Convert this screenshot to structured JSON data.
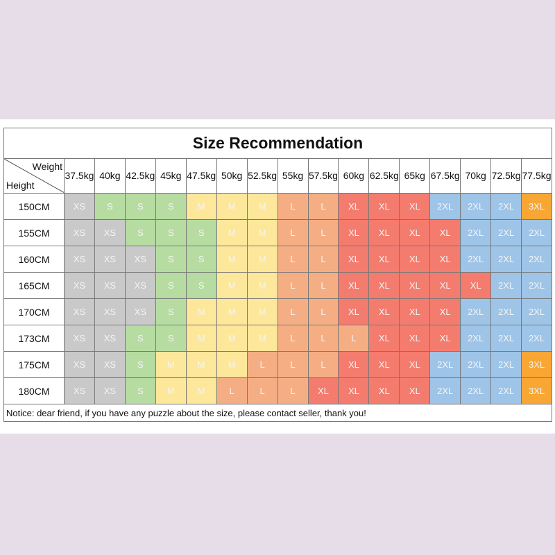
{
  "title": "Size Recommendation",
  "corner": {
    "column_label": "Weight",
    "row_label": "Height"
  },
  "weights": [
    "37.5kg",
    "40kg",
    "42.5kg",
    "45kg",
    "47.5kg",
    "50kg",
    "52.5kg",
    "55kg",
    "57.5kg",
    "60kg",
    "62.5kg",
    "65kg",
    "67.5kg",
    "70kg",
    "72.5kg",
    "77.5kg"
  ],
  "rows": [
    {
      "height": "150CM",
      "sizes": [
        "XS",
        "S",
        "S",
        "S",
        "M",
        "M",
        "M",
        "L",
        "L",
        "XL",
        "XL",
        "XL",
        "2XL",
        "2XL",
        "2XL",
        "3XL"
      ]
    },
    {
      "height": "155CM",
      "sizes": [
        "XS",
        "XS",
        "S",
        "S",
        "S",
        "M",
        "M",
        "L",
        "L",
        "XL",
        "XL",
        "XL",
        "XL",
        "2XL",
        "2XL",
        "2XL"
      ]
    },
    {
      "height": "160CM",
      "sizes": [
        "XS",
        "XS",
        "XS",
        "S",
        "S",
        "M",
        "M",
        "L",
        "L",
        "XL",
        "XL",
        "XL",
        "XL",
        "2XL",
        "2XL",
        "2XL"
      ]
    },
    {
      "height": "165CM",
      "sizes": [
        "XS",
        "XS",
        "XS",
        "S",
        "S",
        "M",
        "M",
        "L",
        "L",
        "XL",
        "XL",
        "XL",
        "XL",
        "XL",
        "2XL",
        "2XL"
      ]
    },
    {
      "height": "170CM",
      "sizes": [
        "XS",
        "XS",
        "XS",
        "S",
        "M",
        "M",
        "M",
        "L",
        "L",
        "XL",
        "XL",
        "XL",
        "XL",
        "2XL",
        "2XL",
        "2XL"
      ]
    },
    {
      "height": "173CM",
      "sizes": [
        "XS",
        "XS",
        "S",
        "S",
        "M",
        "M",
        "M",
        "L",
        "L",
        "L",
        "XL",
        "XL",
        "XL",
        "2XL",
        "2XL",
        "2XL"
      ]
    },
    {
      "height": "175CM",
      "sizes": [
        "XS",
        "XS",
        "S",
        "M",
        "M",
        "M",
        "L",
        "L",
        "L",
        "XL",
        "XL",
        "XL",
        "2XL",
        "2XL",
        "2XL",
        "3XL"
      ]
    },
    {
      "height": "180CM",
      "sizes": [
        "XS",
        "XS",
        "S",
        "M",
        "M",
        "L",
        "L",
        "L",
        "XL",
        "XL",
        "XL",
        "XL",
        "2XL",
        "2XL",
        "2XL",
        "3XL"
      ]
    }
  ],
  "palette": [
    {
      "size": "XS",
      "color": "#c9c9c9"
    },
    {
      "size": "S",
      "color": "#b6dca2"
    },
    {
      "size": "M",
      "color": "#fde79b"
    },
    {
      "size": "L",
      "color": "#f5ae84"
    },
    {
      "size": "XL",
      "color": "#f47c6e"
    },
    {
      "size": "2XL",
      "color": "#9ec4e7"
    },
    {
      "size": "3XL",
      "color": "#f8a634"
    }
  ],
  "notice": "Notice: dear friend, if you have any puzzle about the size, please contact seller, thank you!"
}
